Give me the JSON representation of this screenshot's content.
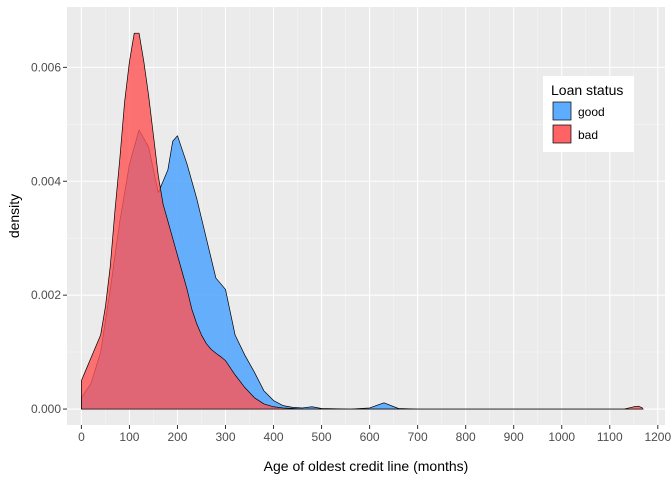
{
  "chart_data": {
    "type": "area",
    "subtype": "density",
    "title": "",
    "xlabel": "Age of oldest credit line (months)",
    "ylabel": "density",
    "xlim": [
      -30,
      1215
    ],
    "ylim": [
      -0.00028,
      0.00706
    ],
    "x_ticks": [
      0,
      100,
      200,
      300,
      400,
      500,
      600,
      700,
      800,
      900,
      1000,
      1100,
      1200
    ],
    "x_tick_labels": [
      "0",
      "100",
      "200",
      "300",
      "400",
      "500",
      "600",
      "700",
      "800",
      "900",
      "1000",
      "1100",
      "1200"
    ],
    "y_ticks": [
      0,
      0.002,
      0.004,
      0.006
    ],
    "y_tick_labels": [
      "0.000",
      "0.002",
      "0.004",
      "0.006"
    ],
    "grid": true,
    "legend": {
      "title": "Loan status",
      "position": "top-right",
      "entries": [
        {
          "label": "good",
          "color": "#4DA3FF"
        },
        {
          "label": "bad",
          "color": "#FF5252"
        }
      ]
    },
    "series": [
      {
        "name": "good",
        "color": "#4DA3FF",
        "opacity": 0.85,
        "x": [
          0,
          20,
          40,
          60,
          80,
          100,
          120,
          140,
          160,
          180,
          190,
          200,
          220,
          240,
          260,
          280,
          300,
          320,
          340,
          360,
          380,
          400,
          420,
          440,
          460,
          480,
          500,
          560,
          600,
          630,
          660,
          700,
          800,
          900,
          1000,
          1100,
          1170
        ],
        "y": [
          0.0002,
          0.00045,
          0.001,
          0.0021,
          0.0033,
          0.0043,
          0.0049,
          0.0046,
          0.0038,
          0.0042,
          0.0047,
          0.0048,
          0.0043,
          0.0037,
          0.003,
          0.0023,
          0.0021,
          0.0013,
          0.00095,
          0.00065,
          0.00032,
          0.00015,
          6e-05,
          3e-05,
          2e-05,
          4e-05,
          1e-05,
          0.0,
          2e-05,
          0.00011,
          1e-05,
          0.0,
          0.0,
          0.0,
          0.0,
          0.0,
          0.0
        ]
      },
      {
        "name": "bad",
        "color": "#FF5252",
        "opacity": 0.8,
        "x": [
          0,
          10,
          20,
          30,
          40,
          50,
          60,
          70,
          80,
          90,
          100,
          110,
          120,
          130,
          140,
          150,
          160,
          170,
          180,
          190,
          200,
          210,
          220,
          230,
          240,
          250,
          260,
          270,
          280,
          290,
          300,
          320,
          340,
          360,
          380,
          400,
          420,
          440,
          460,
          500,
          600,
          800,
          1000,
          1100,
          1130,
          1150,
          1160,
          1168
        ],
        "y": [
          0.0005,
          0.0007,
          0.0009,
          0.0011,
          0.0013,
          0.0018,
          0.0025,
          0.0035,
          0.0044,
          0.0054,
          0.0061,
          0.0066,
          0.0066,
          0.0061,
          0.0055,
          0.0048,
          0.0041,
          0.0036,
          0.0033,
          0.003,
          0.0027,
          0.0024,
          0.0021,
          0.00175,
          0.0015,
          0.0013,
          0.00115,
          0.00105,
          0.00098,
          0.00092,
          0.00085,
          0.0006,
          0.00038,
          0.0002,
          9e-05,
          4e-05,
          2e-05,
          1e-05,
          0.0,
          0.0,
          0.0,
          0.0,
          0.0,
          0.0,
          0.0,
          4e-05,
          5e-05,
          2e-05
        ]
      }
    ]
  }
}
